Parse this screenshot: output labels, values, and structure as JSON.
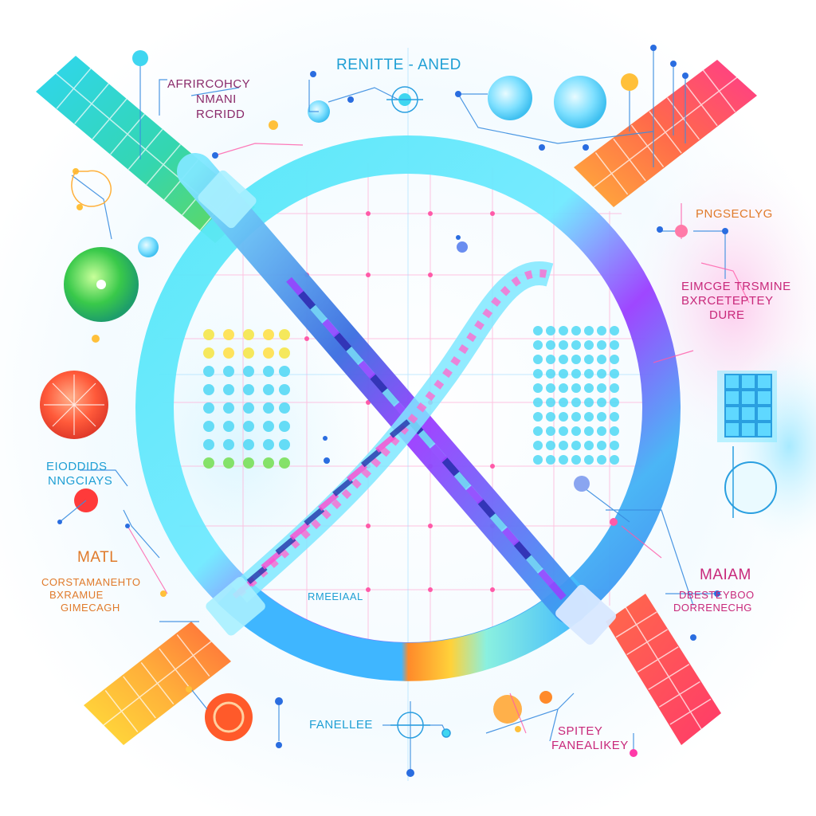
{
  "colors": {
    "cyan": "#3fe6f6",
    "sky": "#7fd3ff",
    "blue": "#3a6de0",
    "navy": "#2233aa",
    "violet": "#9a3dff",
    "magenta": "#ff3aa8",
    "pink": "#ff5a8c",
    "orange": "#ff8a2a",
    "yellow": "#ffd23a",
    "green": "#39c94a",
    "red": "#ff4a3a",
    "teal_text": "#1f9fd4",
    "purple_text": "#8a2a6a",
    "orange_text": "#e07a2a",
    "pink_text": "#c8287a"
  },
  "labels": {
    "top_title": "RENITTE - ANED",
    "top_left_1": "AFRIRCOHCY",
    "top_left_2": "NMANI",
    "top_left_3": "RCRIDD",
    "right_1": "PNGSECLYG",
    "right_2a": "EIMCGE TRSMINE",
    "right_2b": "BXRCETEPTEY",
    "right_2c": "DURE",
    "left_mid_1": "EIODDIDS",
    "left_mid_2": "NNGCIAYS",
    "left_low_title": "MATL",
    "left_low_1": "CORSTAMANEHTO",
    "left_low_2": "BXRAMUE",
    "left_low_3": "GIMECAGH",
    "right_low_title": "MAIAM",
    "right_low_1": "DBESTEYBOO",
    "right_low_2": "DORRENECHG",
    "center_low": "RMEEIAAL",
    "bottom_center": "FANELLEE",
    "bottom_right_1": "SPITEY",
    "bottom_right_2": "FANEALIKEY"
  }
}
